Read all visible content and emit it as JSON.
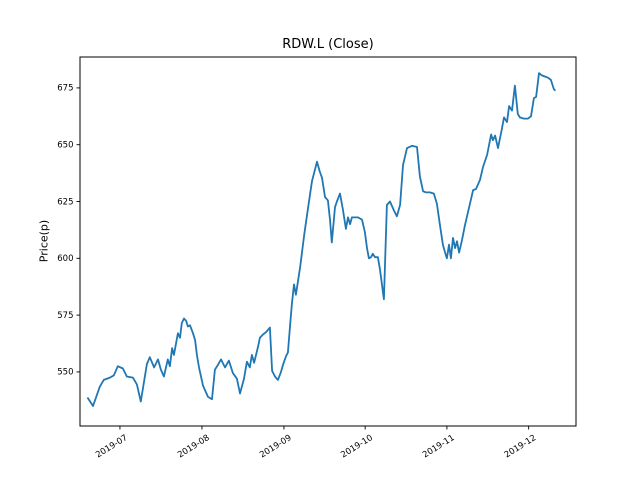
{
  "figure": {
    "background": "#ffffff"
  },
  "chart_data": {
    "type": "line",
    "title": "RDW.L (Close)",
    "xlabel": "",
    "ylabel": "Price(p)",
    "series_name": "Close",
    "line_color": "#1f77b4",
    "axis_color": "#000000",
    "x_unit": "days since first point (approx 2019-06-19)",
    "xlim": [
      -3,
      184.5
    ],
    "ylim": [
      526.2,
      688.6
    ],
    "yticks": [
      550,
      575,
      600,
      625,
      650,
      675
    ],
    "xticks": [
      {
        "pos": 12.1,
        "label": "2019-07"
      },
      {
        "pos": 43.1,
        "label": "2019-08"
      },
      {
        "pos": 74.1,
        "label": "2019-09"
      },
      {
        "pos": 104.8,
        "label": "2019-10"
      },
      {
        "pos": 135.7,
        "label": "2019-11"
      },
      {
        "pos": 166.6,
        "label": "2019-12"
      }
    ],
    "grid": false,
    "legend": false,
    "points": [
      [
        0,
        538.5
      ],
      [
        1.9,
        535
      ],
      [
        4.5,
        543.5
      ],
      [
        6,
        546.5
      ],
      [
        8.3,
        547.5
      ],
      [
        9.8,
        548.5
      ],
      [
        11.3,
        552.5
      ],
      [
        13.2,
        551.5
      ],
      [
        14.7,
        548
      ],
      [
        17,
        547.5
      ],
      [
        18.5,
        544.5
      ],
      [
        20,
        537
      ],
      [
        22.3,
        553.5
      ],
      [
        23.4,
        556.5
      ],
      [
        25,
        552
      ],
      [
        26.5,
        555.5
      ],
      [
        27.6,
        551
      ],
      [
        28.7,
        548
      ],
      [
        30.2,
        555.5
      ],
      [
        31,
        552.5
      ],
      [
        31.8,
        560.5
      ],
      [
        32.5,
        557.5
      ],
      [
        34,
        567
      ],
      [
        34.8,
        565
      ],
      [
        35.5,
        571.5
      ],
      [
        36.3,
        573.5
      ],
      [
        37.1,
        572.5
      ],
      [
        37.8,
        570
      ],
      [
        38.6,
        570.5
      ],
      [
        39.7,
        567
      ],
      [
        40.5,
        564
      ],
      [
        41.2,
        557.5
      ],
      [
        42,
        552
      ],
      [
        43.5,
        544
      ],
      [
        45.4,
        539
      ],
      [
        46.9,
        538
      ],
      [
        48,
        551
      ],
      [
        49.1,
        553
      ],
      [
        50.3,
        555.5
      ],
      [
        51.8,
        552
      ],
      [
        53.3,
        555
      ],
      [
        54.8,
        549.5
      ],
      [
        56.3,
        547
      ],
      [
        57.5,
        540.5
      ],
      [
        59,
        547
      ],
      [
        60.1,
        554.5
      ],
      [
        61.2,
        552
      ],
      [
        62,
        557.5
      ],
      [
        62.8,
        554
      ],
      [
        64.3,
        561
      ],
      [
        65,
        565
      ],
      [
        66.2,
        566.5
      ],
      [
        67.3,
        567.5
      ],
      [
        68.8,
        569.5
      ],
      [
        69.6,
        550.5
      ],
      [
        70.7,
        548
      ],
      [
        71.8,
        546.5
      ],
      [
        73,
        550
      ],
      [
        73.7,
        553
      ],
      [
        74.9,
        557
      ],
      [
        75.6,
        558.5
      ],
      [
        76.4,
        570
      ],
      [
        77.1,
        580
      ],
      [
        77.9,
        588.5
      ],
      [
        78.6,
        584
      ],
      [
        80.2,
        596
      ],
      [
        81.7,
        610
      ],
      [
        83.2,
        622
      ],
      [
        84.7,
        634
      ],
      [
        86.6,
        642.5
      ],
      [
        87.7,
        638
      ],
      [
        88.5,
        635.5
      ],
      [
        89.6,
        627
      ],
      [
        90.7,
        625.5
      ],
      [
        91.5,
        617
      ],
      [
        92.2,
        607
      ],
      [
        93.4,
        622.5
      ],
      [
        94.1,
        625
      ],
      [
        95.3,
        628.5
      ],
      [
        96.4,
        621.5
      ],
      [
        97.5,
        613
      ],
      [
        98.3,
        618
      ],
      [
        99.1,
        615
      ],
      [
        99.8,
        618
      ],
      [
        100.6,
        618
      ],
      [
        102.1,
        618
      ],
      [
        103.6,
        617
      ],
      [
        104.7,
        611.5
      ],
      [
        105.5,
        604.5
      ],
      [
        106.2,
        600
      ],
      [
        107,
        600.5
      ],
      [
        107.7,
        602
      ],
      [
        108.5,
        600.5
      ],
      [
        109.6,
        600.5
      ],
      [
        110.4,
        595
      ],
      [
        111.9,
        582
      ],
      [
        113,
        623.5
      ],
      [
        114.2,
        625
      ],
      [
        115.7,
        621
      ],
      [
        116.8,
        618.5
      ],
      [
        118,
        623.5
      ],
      [
        119.1,
        641
      ],
      [
        120.6,
        648.5
      ],
      [
        122.5,
        649.5
      ],
      [
        124.4,
        649
      ],
      [
        125.5,
        636
      ],
      [
        126.7,
        629.5
      ],
      [
        127.8,
        629
      ],
      [
        129.3,
        629
      ],
      [
        130.8,
        628.5
      ],
      [
        131.9,
        624
      ],
      [
        133.1,
        614.5
      ],
      [
        134.2,
        606
      ],
      [
        135,
        602.5
      ],
      [
        135.7,
        600
      ],
      [
        136.5,
        606
      ],
      [
        137.2,
        600
      ],
      [
        138,
        609
      ],
      [
        138.8,
        604.5
      ],
      [
        139.5,
        607.5
      ],
      [
        140.3,
        602.5
      ],
      [
        141.4,
        608
      ],
      [
        142.5,
        614.5
      ],
      [
        143.7,
        620.5
      ],
      [
        144.8,
        626
      ],
      [
        145.6,
        630
      ],
      [
        146.7,
        630.5
      ],
      [
        148.2,
        634.5
      ],
      [
        149.3,
        640
      ],
      [
        150.9,
        645.5
      ],
      [
        152.4,
        654.5
      ],
      [
        153.1,
        652
      ],
      [
        153.9,
        654
      ],
      [
        155,
        648.5
      ],
      [
        156.5,
        657
      ],
      [
        157.3,
        662
      ],
      [
        158.4,
        660
      ],
      [
        159.2,
        667
      ],
      [
        160.3,
        665
      ],
      [
        161.4,
        676
      ],
      [
        162.5,
        663.5
      ],
      [
        163.3,
        662
      ],
      [
        164.8,
        661.5
      ],
      [
        166.3,
        661.5
      ],
      [
        167.5,
        662.5
      ],
      [
        168.6,
        670.5
      ],
      [
        169.4,
        671
      ],
      [
        170.5,
        681.5
      ],
      [
        171.6,
        680.5
      ],
      [
        172.7,
        680
      ],
      [
        173.9,
        679.5
      ],
      [
        175,
        678.5
      ],
      [
        176.1,
        674.5
      ],
      [
        176.5,
        674
      ]
    ]
  }
}
